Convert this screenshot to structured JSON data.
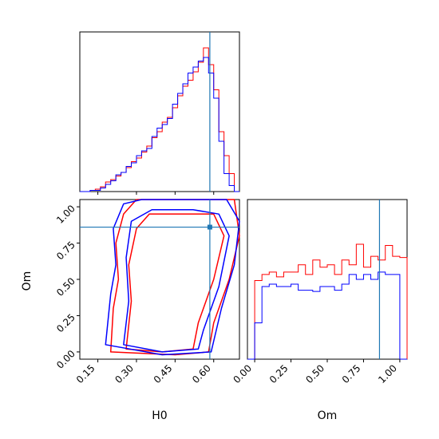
{
  "chart_data": {
    "type": "corner",
    "axes_labels": {
      "x_h0": "H0",
      "x_om": "Om",
      "y_om": "Om"
    },
    "h0_ticks": [
      "0.15",
      "0.30",
      "0.45",
      "0.60"
    ],
    "om_ticks": [
      "0.00",
      "0.25",
      "0.50",
      "0.75",
      "1.00"
    ],
    "h0_range": [
      0.08,
      0.7
    ],
    "om_range": [
      -0.05,
      1.05
    ],
    "truth": {
      "H0": 0.585,
      "Om": 0.86
    },
    "truth_color": "#1f77b4",
    "series": [
      {
        "name": "red",
        "color": "#ff0000"
      },
      {
        "name": "blue",
        "color": "#0000ff"
      }
    ],
    "h0_hist": {
      "bins": [
        0.08,
        0.1,
        0.12,
        0.14,
        0.16,
        0.18,
        0.2,
        0.22,
        0.24,
        0.26,
        0.28,
        0.3,
        0.32,
        0.34,
        0.36,
        0.38,
        0.4,
        0.42,
        0.44,
        0.46,
        0.48,
        0.5,
        0.52,
        0.54,
        0.56,
        0.58,
        0.6,
        0.62,
        0.64,
        0.66,
        0.68,
        0.7
      ],
      "red": [
        0,
        0,
        1,
        2,
        4,
        8,
        10,
        13,
        16,
        20,
        25,
        28,
        33,
        38,
        45,
        50,
        58,
        62,
        70,
        80,
        88,
        93,
        100,
        108,
        120,
        106,
        85,
        50,
        30,
        15,
        0
      ],
      "blue": [
        0,
        0,
        1,
        1,
        3,
        6,
        9,
        14,
        16,
        21,
        24,
        30,
        34,
        36,
        46,
        53,
        56,
        61,
        73,
        82,
        90,
        99,
        104,
        109,
        112,
        99,
        78,
        42,
        15,
        5,
        0
      ]
    },
    "om_hist": {
      "bins": [
        -0.05,
        0.0,
        0.05,
        0.1,
        0.15,
        0.2,
        0.25,
        0.3,
        0.35,
        0.4,
        0.45,
        0.5,
        0.55,
        0.6,
        0.65,
        0.7,
        0.75,
        0.8,
        0.85,
        0.9,
        0.95,
        1.0,
        1.05
      ],
      "red": [
        0,
        65,
        70,
        72,
        68,
        72,
        72,
        78,
        70,
        82,
        76,
        78,
        70,
        82,
        78,
        95,
        76,
        85,
        82,
        94,
        85,
        84,
        0
      ],
      "blue": [
        0,
        30,
        60,
        62,
        60,
        60,
        62,
        57,
        57,
        56,
        60,
        60,
        57,
        62,
        70,
        66,
        70,
        66,
        72,
        70,
        70,
        0,
        0
      ]
    },
    "contours": {
      "red": [
        [
          [
            0.2,
            0.0
          ],
          [
            0.21,
            0.3
          ],
          [
            0.23,
            0.5
          ],
          [
            0.22,
            0.75
          ],
          [
            0.25,
            0.95
          ],
          [
            0.3,
            1.05
          ],
          [
            0.5,
            1.05
          ],
          [
            0.62,
            1.05
          ],
          [
            0.68,
            1.05
          ],
          [
            0.7,
            0.8
          ],
          [
            0.66,
            0.5
          ],
          [
            0.6,
            0.2
          ],
          [
            0.58,
            0.0
          ],
          [
            0.45,
            -0.02
          ],
          [
            0.2,
            0.0
          ]
        ],
        [
          [
            0.26,
            0.02
          ],
          [
            0.28,
            0.35
          ],
          [
            0.27,
            0.6
          ],
          [
            0.3,
            0.85
          ],
          [
            0.35,
            0.95
          ],
          [
            0.5,
            0.95
          ],
          [
            0.6,
            0.95
          ],
          [
            0.64,
            0.8
          ],
          [
            0.6,
            0.5
          ],
          [
            0.54,
            0.2
          ],
          [
            0.52,
            0.02
          ],
          [
            0.4,
            0.0
          ],
          [
            0.26,
            0.02
          ]
        ]
      ],
      "blue": [
        [
          [
            0.18,
            0.05
          ],
          [
            0.2,
            0.4
          ],
          [
            0.22,
            0.6
          ],
          [
            0.21,
            0.85
          ],
          [
            0.25,
            1.02
          ],
          [
            0.32,
            1.05
          ],
          [
            0.5,
            1.05
          ],
          [
            0.65,
            1.05
          ],
          [
            0.7,
            0.9
          ],
          [
            0.68,
            0.6
          ],
          [
            0.63,
            0.3
          ],
          [
            0.59,
            0.0
          ],
          [
            0.4,
            -0.02
          ],
          [
            0.18,
            0.05
          ]
        ],
        [
          [
            0.25,
            0.05
          ],
          [
            0.27,
            0.35
          ],
          [
            0.26,
            0.65
          ],
          [
            0.28,
            0.9
          ],
          [
            0.36,
            0.98
          ],
          [
            0.52,
            0.98
          ],
          [
            0.62,
            0.95
          ],
          [
            0.66,
            0.8
          ],
          [
            0.62,
            0.45
          ],
          [
            0.56,
            0.15
          ],
          [
            0.54,
            0.02
          ],
          [
            0.4,
            0.0
          ],
          [
            0.25,
            0.05
          ]
        ]
      ]
    }
  }
}
